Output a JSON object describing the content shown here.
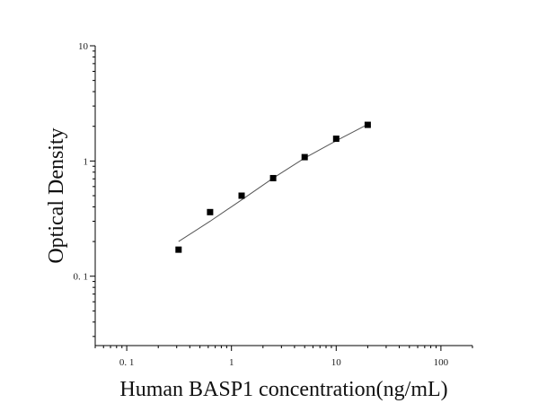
{
  "chart_data": {
    "type": "scatter",
    "title": "",
    "xlabel": "Human BASP1 concentration(ng/mL)",
    "ylabel": "Optical Density",
    "x_scale": "log",
    "y_scale": "log",
    "xlim": [
      0.05,
      200
    ],
    "ylim": [
      0.025,
      10
    ],
    "x_ticks": [
      {
        "value": 0.1,
        "label": "0. 1"
      },
      {
        "value": 1,
        "label": "1"
      },
      {
        "value": 10,
        "label": "10"
      },
      {
        "value": 100,
        "label": "100"
      }
    ],
    "y_ticks": [
      {
        "value": 0.1,
        "label": "0. 1"
      },
      {
        "value": 1,
        "label": "1"
      },
      {
        "value": 10,
        "label": "10"
      }
    ],
    "grid": false,
    "legend": "none",
    "series": [
      {
        "marker": "square",
        "color": "#000000",
        "x": [
          0.3125,
          0.625,
          1.25,
          2.5,
          5,
          10,
          20
        ],
        "y": [
          0.17,
          0.36,
          0.5,
          0.71,
          1.08,
          1.56,
          2.06
        ]
      }
    ],
    "fit_curve": {
      "color": "#555555",
      "x": [
        0.3125,
        0.625,
        1.25,
        2.5,
        5,
        10,
        20
      ],
      "y": [
        0.2,
        0.3,
        0.46,
        0.71,
        1.06,
        1.5,
        2.08
      ]
    }
  }
}
